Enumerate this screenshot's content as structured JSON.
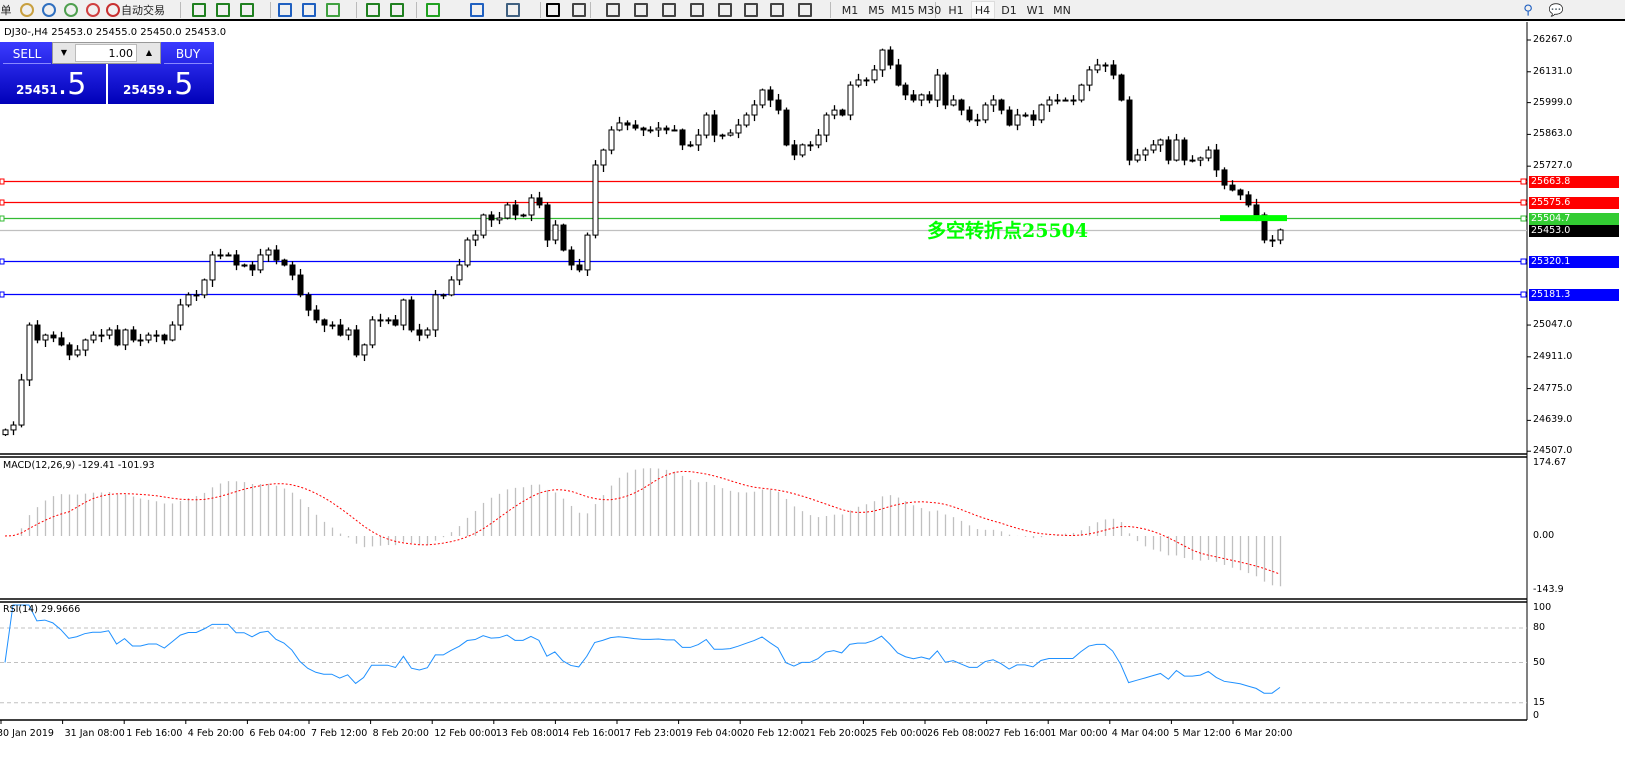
{
  "toolbar": {
    "partial_label": "单",
    "autotrade_label": "自动交易",
    "icons": [
      "chart-style-icon",
      "folder-icon",
      "account-icon",
      "signal-icon",
      "autotrade-icon",
      "bar-chart-icon",
      "candlestick-icon",
      "line-chart-icon",
      "zoom-in-icon",
      "zoom-out-icon",
      "tile-windows-icon",
      "auto-scroll-icon",
      "chart-shift-icon",
      "indicators-icon",
      "periods-icon",
      "templates-icon",
      "cursor-icon",
      "crosshair-icon",
      "vertical-line-icon",
      "horizontal-line-icon",
      "trendline-icon",
      "equidistant-channel-icon",
      "fibonacci-icon",
      "text-icon",
      "text-label-icon",
      "arrows-icon"
    ],
    "timeframes": [
      "M1",
      "M5",
      "M15",
      "M30",
      "H1",
      "H4",
      "D1",
      "W1",
      "MN"
    ],
    "active_timeframe": "H4"
  },
  "symbol_header": "DJ30-,H4  25453.0 25455.0 25450.0 25453.0",
  "trade_panel": {
    "sell_label": "SELL",
    "buy_label": "BUY",
    "lot": "1.00",
    "sell_price_main": "25451",
    "sell_price_frac": ".5",
    "buy_price_main": "25459",
    "buy_price_frac": ".5"
  },
  "annotation": {
    "text": "多空转折点25504",
    "color": "#00ff00"
  },
  "price_axis": [
    "26267.0",
    "26131.0",
    "25999.0",
    "25863.0",
    "25727.0",
    "25047.0",
    "24911.0",
    "24775.0",
    "24639.0",
    "24507.0"
  ],
  "levels": [
    {
      "label": "25663.8",
      "value": 25663.8,
      "color": "#ff0000"
    },
    {
      "label": "25575.6",
      "value": 25575.6,
      "color": "#ff0000"
    },
    {
      "label": "25504.7",
      "value": 25504.7,
      "color": "#33bb33"
    },
    {
      "label": "25453.0",
      "value": 25453.0,
      "color": "#000000",
      "line": "#c0c0c0"
    },
    {
      "label": "25320.1",
      "value": 25320.1,
      "color": "#0000ff"
    },
    {
      "label": "25181.3",
      "value": 25181.3,
      "color": "#0000ff"
    }
  ],
  "macd": {
    "label": "MACD(12,26,9) -129.41 -101.93",
    "axis": [
      "174.67",
      "0.00",
      "-143.9"
    ],
    "range": [
      -143.9,
      174.67
    ],
    "hist_color": "#c0c0c0",
    "signal_color": "#ff0000"
  },
  "rsi": {
    "label": "RSI(14) 29.9666",
    "axis": [
      "100",
      "80",
      "50",
      "15",
      "0"
    ],
    "levels": [
      80,
      50,
      15
    ],
    "color": "#1e90ff"
  },
  "time_axis": [
    "30 Jan 2019",
    "31 Jan 08:00",
    "1 Feb 16:00",
    "4 Feb 20:00",
    "6 Feb 04:00",
    "7 Feb 12:00",
    "8 Feb 20:00",
    "12 Feb 00:00",
    "13 Feb 08:00",
    "14 Feb 16:00",
    "17 Feb 23:00",
    "19 Feb 04:00",
    "20 Feb 12:00",
    "21 Feb 20:00",
    "25 Feb 00:00",
    "26 Feb 08:00",
    "27 Feb 16:00",
    "1 Mar 00:00",
    "4 Mar 04:00",
    "5 Mar 12:00",
    "6 Mar 20:00"
  ],
  "chart_data": {
    "type": "candlestick",
    "symbol": "DJ30-",
    "timeframe": "H4",
    "ylim": [
      24507,
      26267
    ],
    "closes": [
      24598,
      24619,
      24812,
      25047,
      24983,
      25004,
      24992,
      24962,
      24919,
      24940,
      24983,
      25004,
      25004,
      25026,
      24962,
      25026,
      24983,
      24983,
      25004,
      25004,
      24983,
      25047,
      25133,
      25176,
      25176,
      25240,
      25347,
      25347,
      25347,
      25304,
      25304,
      25283,
      25347,
      25368,
      25325,
      25304,
      25261,
      25176,
      25111,
      25069,
      25047,
      25047,
      25004,
      25026,
      24919,
      24962,
      25069,
      25069,
      25069,
      25047,
      25154,
      25026,
      25004,
      25026,
      25176,
      25176,
      25240,
      25304,
      25411,
      25432,
      25518,
      25497,
      25505,
      25561,
      25518,
      25518,
      25591,
      25561,
      25411,
      25475,
      25368,
      25304,
      25283,
      25432,
      25732,
      25796,
      25882,
      25912,
      25903,
      25890,
      25882,
      25882,
      25890,
      25882,
      25882,
      25818,
      25818,
      25860,
      25946,
      25860,
      25860,
      25869,
      25903,
      25946,
      25989,
      26053,
      26010,
      25967,
      25818,
      25775,
      25818,
      25818,
      25860,
      25946,
      25967,
      25946,
      26074,
      26096,
      26096,
      26139,
      26224,
      26160,
      26074,
      26032,
      26010,
      26032,
      26010,
      26117,
      25989,
      26010,
      25967,
      25925,
      25925,
      25989,
      26010,
      25967,
      25903,
      25946,
      25946,
      25925,
      25989,
      26010,
      26010,
      26010,
      26010,
      26074,
      26139,
      26160,
      26160,
      26117,
      26010,
      25753,
      25775,
      25796,
      25818,
      25839,
      25753,
      25839,
      25753,
      25753,
      25762,
      25796,
      25711,
      25646,
      25625,
      25604,
      25561,
      25518,
      25411,
      25411,
      25454
    ]
  }
}
